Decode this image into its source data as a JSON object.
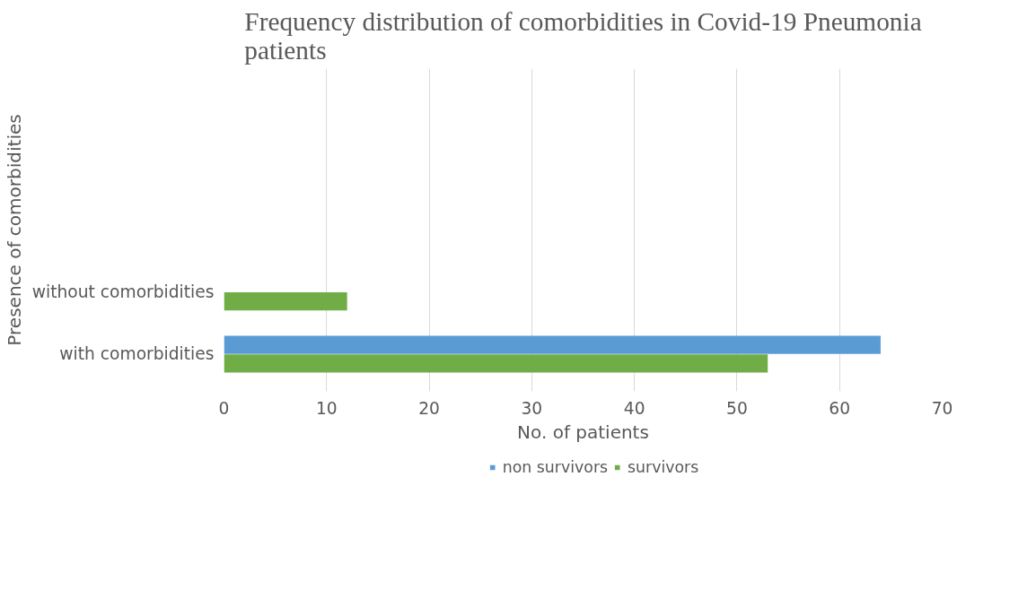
{
  "chart_data": {
    "type": "bar",
    "orientation": "horizontal",
    "title": "Frequency distribution of comorbidities in Covid-19 Pneumonia patients",
    "xlabel": "No. of patients",
    "ylabel": "Presence of comorbidities",
    "categories": [
      "without comorbidities",
      "with comorbidities"
    ],
    "series": [
      {
        "name": "non survivors",
        "color": "#5b9bd5",
        "values": [
          0,
          64
        ]
      },
      {
        "name": "survivors",
        "color": "#70ad47",
        "values": [
          12,
          53
        ]
      }
    ],
    "xlim": [
      0,
      70
    ],
    "xticks": [
      0,
      10,
      20,
      30,
      40,
      50,
      60,
      70
    ],
    "grid": "x",
    "legend": "bottom"
  }
}
